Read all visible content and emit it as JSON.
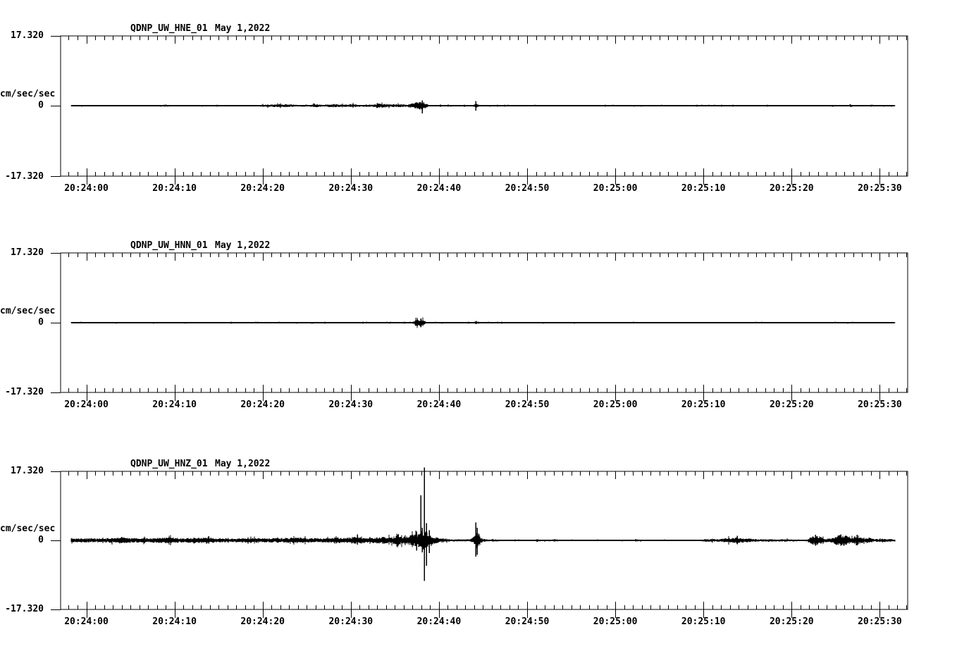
{
  "page": {
    "background": "#ffffff",
    "foreground": "#000000"
  },
  "charts": [
    {
      "station": "QDNP_UW_HNE_01",
      "date": "May 1,2022",
      "y_top": "17.320",
      "y_zero": "0",
      "y_bottom": "-17.320",
      "y_unit": "cm/sec/sec"
    },
    {
      "station": "QDNP_UW_HNN_01",
      "date": "May 1,2022",
      "y_top": "17.320",
      "y_zero": "0",
      "y_bottom": "-17.320",
      "y_unit": "cm/sec/sec"
    },
    {
      "station": "QDNP_UW_HNZ_01",
      "date": "May 1,2022",
      "y_top": "17.320",
      "y_zero": "0",
      "y_bottom": "-17.320",
      "y_unit": "cm/sec/sec"
    }
  ],
  "chart_data": [
    {
      "type": "line",
      "title": "QDNP_UW_HNE_01  May 1,2022",
      "ylabel": "cm/sec/sec",
      "ylim": [
        -17.32,
        17.32
      ],
      "y_tick_values": [
        17.32,
        0,
        -17.32
      ],
      "x_tick_labels": [
        "20:24:00",
        "20:24:10",
        "20:24:20",
        "20:24:30",
        "20:24:40",
        "20:24:50",
        "20:25:00",
        "20:25:10",
        "20:25:20",
        "20:25:30"
      ],
      "x_tick_seconds": [
        0,
        10,
        20,
        30,
        40,
        50,
        60,
        70,
        80,
        90
      ],
      "x_minor_interval_s": 1,
      "x_range_s": [
        -2.9,
        93.2
      ],
      "trace_range_s": [
        -1.7,
        91.7
      ],
      "grid": false,
      "seed": 11,
      "envelope": [
        [
          -1.7,
          0.14
        ],
        [
          8.5,
          0.14
        ],
        [
          9,
          0.3
        ],
        [
          9.5,
          0.14
        ],
        [
          16.8,
          0.14
        ],
        [
          17.2,
          0.22
        ],
        [
          17.6,
          0.14
        ],
        [
          23,
          0.35
        ],
        [
          24,
          0.18
        ],
        [
          26.3,
          0.32
        ],
        [
          27,
          0.18
        ],
        [
          28,
          0.4
        ],
        [
          29,
          0.25
        ],
        [
          30.3,
          0.35
        ],
        [
          31,
          0.18
        ],
        [
          32.5,
          0.3
        ],
        [
          33.5,
          0.45
        ],
        [
          34.5,
          0.3
        ],
        [
          35.5,
          0.35
        ],
        [
          36.5,
          0.25
        ],
        [
          37,
          0.5
        ],
        [
          37.4,
          0.8
        ],
        [
          38.1,
          1.0
        ],
        [
          38.5,
          0.6
        ],
        [
          38.8,
          0.2
        ],
        [
          43.8,
          0.15
        ],
        [
          44.2,
          0.6
        ],
        [
          44.6,
          0.15
        ],
        [
          86.3,
          0.14
        ],
        [
          86.7,
          0.35
        ],
        [
          87.1,
          0.14
        ],
        [
          91.7,
          0.14
        ]
      ],
      "spikes": [
        [
          37.75,
          0.9,
          -0.7
        ],
        [
          38.05,
          1.3,
          -1.9
        ],
        [
          44.2,
          1.15,
          -1.25
        ]
      ]
    },
    {
      "type": "line",
      "title": "QDNP_UW_HNN_01  May 1,2022",
      "ylabel": "cm/sec/sec",
      "ylim": [
        -17.32,
        17.32
      ],
      "y_tick_values": [
        17.32,
        0,
        -17.32
      ],
      "x_tick_labels": [
        "20:24:00",
        "20:24:10",
        "20:24:20",
        "20:24:30",
        "20:24:40",
        "20:24:50",
        "20:25:00",
        "20:25:10",
        "20:25:20",
        "20:25:30"
      ],
      "x_tick_seconds": [
        0,
        10,
        20,
        30,
        40,
        50,
        60,
        70,
        80,
        90
      ],
      "x_minor_interval_s": 1,
      "x_range_s": [
        -2.9,
        93.2
      ],
      "trace_range_s": [
        -1.7,
        91.7
      ],
      "grid": false,
      "seed": 22,
      "envelope": [
        [
          -1.7,
          0.13
        ],
        [
          33.8,
          0.13
        ],
        [
          34.1,
          0.25
        ],
        [
          34.4,
          0.13
        ],
        [
          36.9,
          0.13
        ],
        [
          37.2,
          0.5
        ],
        [
          37.6,
          0.8
        ],
        [
          38.0,
          0.9
        ],
        [
          38.4,
          0.4
        ],
        [
          38.7,
          0.13
        ],
        [
          43.9,
          0.13
        ],
        [
          44.25,
          0.45
        ],
        [
          44.6,
          0.13
        ],
        [
          86.5,
          0.13
        ],
        [
          86.8,
          0.28
        ],
        [
          87.1,
          0.13
        ],
        [
          91.7,
          0.13
        ]
      ],
      "spikes": [
        [
          37.55,
          0.85,
          -0.9
        ],
        [
          37.95,
          1.05,
          -1.15
        ],
        [
          38.2,
          0.55,
          -0.5
        ]
      ]
    },
    {
      "type": "line",
      "title": "QDNP_UW_HNZ_01  May 1,2022",
      "ylabel": "cm/sec/sec",
      "ylim": [
        -17.32,
        17.32
      ],
      "y_tick_values": [
        17.32,
        0,
        -17.32
      ],
      "x_tick_labels": [
        "20:24:00",
        "20:24:10",
        "20:24:20",
        "20:24:30",
        "20:24:40",
        "20:24:50",
        "20:25:00",
        "20:25:10",
        "20:25:20",
        "20:25:30"
      ],
      "x_tick_seconds": [
        0,
        10,
        20,
        30,
        40,
        50,
        60,
        70,
        80,
        90
      ],
      "x_minor_interval_s": 1,
      "x_range_s": [
        -2.9,
        93.2
      ],
      "trace_range_s": [
        -1.7,
        91.7
      ],
      "grid": false,
      "seed": 33,
      "envelope": [
        [
          -1.7,
          0.45
        ],
        [
          1,
          0.5
        ],
        [
          3.3,
          0.55
        ],
        [
          4,
          0.85
        ],
        [
          4.8,
          0.55
        ],
        [
          7,
          0.5
        ],
        [
          9.7,
          0.7
        ],
        [
          10.5,
          0.5
        ],
        [
          12,
          0.5
        ],
        [
          13.8,
          0.8
        ],
        [
          14.5,
          0.55
        ],
        [
          16,
          0.45
        ],
        [
          18,
          0.5
        ],
        [
          20,
          0.5
        ],
        [
          22,
          0.55
        ],
        [
          24.3,
          0.7
        ],
        [
          25,
          0.5
        ],
        [
          27,
          0.5
        ],
        [
          28.6,
          0.65
        ],
        [
          29.5,
          0.55
        ],
        [
          30.6,
          0.95
        ],
        [
          31.3,
          0.65
        ],
        [
          32,
          0.6
        ],
        [
          33.8,
          0.9
        ],
        [
          34.5,
          0.7
        ],
        [
          35.3,
          1.05
        ],
        [
          36,
          0.9
        ],
        [
          36.7,
          1.1
        ],
        [
          37.2,
          1.4
        ],
        [
          37.6,
          1.8
        ],
        [
          38.0,
          2.2
        ],
        [
          38.3,
          2.4
        ],
        [
          38.7,
          1.8
        ],
        [
          39.1,
          1.4
        ],
        [
          39.5,
          0.9
        ],
        [
          40,
          0.55
        ],
        [
          40.8,
          0.4
        ],
        [
          41.5,
          0.28
        ],
        [
          43.5,
          0.25
        ],
        [
          43.9,
          0.8
        ],
        [
          44.2,
          2.2
        ],
        [
          44.5,
          1.6
        ],
        [
          44.9,
          0.5
        ],
        [
          45.3,
          0.3
        ],
        [
          45.8,
          0.22
        ],
        [
          46.5,
          0.3
        ],
        [
          47,
          0.18
        ],
        [
          50.8,
          0.15
        ],
        [
          51.2,
          0.4
        ],
        [
          51.6,
          0.15
        ],
        [
          53.2,
          0.3
        ],
        [
          53.6,
          0.15
        ],
        [
          59,
          0.12
        ],
        [
          63,
          0.18
        ],
        [
          64,
          0.12
        ],
        [
          69.5,
          0.15
        ],
        [
          70,
          0.3
        ],
        [
          70.8,
          0.35
        ],
        [
          71.5,
          0.3
        ],
        [
          72.3,
          0.45
        ],
        [
          73,
          0.55
        ],
        [
          73.7,
          0.7
        ],
        [
          74.3,
          0.5
        ],
        [
          75,
          0.45
        ],
        [
          75.7,
          0.35
        ],
        [
          76.5,
          0.25
        ],
        [
          77.5,
          0.3
        ],
        [
          78.3,
          0.25
        ],
        [
          79.5,
          0.3
        ],
        [
          80.3,
          0.25
        ],
        [
          81,
          0.2
        ],
        [
          81.8,
          0.25
        ],
        [
          82.3,
          0.9
        ],
        [
          82.8,
          1.3
        ],
        [
          83.3,
          0.9
        ],
        [
          83.8,
          0.45
        ],
        [
          84.5,
          0.5
        ],
        [
          85.2,
          1.2
        ],
        [
          85.8,
          1.35
        ],
        [
          86.4,
          1.0
        ],
        [
          86.9,
          0.6
        ],
        [
          87.3,
          1.2
        ],
        [
          87.7,
          0.8
        ],
        [
          88.3,
          0.5
        ],
        [
          88.8,
          0.65
        ],
        [
          89.3,
          0.4
        ],
        [
          90,
          0.35
        ],
        [
          90.7,
          0.3
        ],
        [
          91.3,
          0.35
        ],
        [
          91.7,
          0.25
        ]
      ],
      "spikes": [
        [
          13.9,
          1.05,
          -0.8
        ],
        [
          30.7,
          1.5,
          -1.1
        ],
        [
          35.4,
          1.6,
          -1.3
        ],
        [
          37.45,
          2.2,
          -2.6
        ],
        [
          37.9,
          11.3,
          -1.5
        ],
        [
          38.1,
          3.2,
          -3.0
        ],
        [
          38.35,
          18.3,
          -10.2
        ],
        [
          38.6,
          4.3,
          -6.4
        ],
        [
          38.85,
          2.6,
          -3.2
        ],
        [
          44.2,
          4.5,
          -4.1
        ],
        [
          44.35,
          3.2,
          -3.6
        ],
        [
          73.8,
          1.15,
          -1.0
        ],
        [
          82.7,
          1.45,
          -1.3
        ],
        [
          85.6,
          1.5,
          -1.35
        ],
        [
          87.4,
          1.45,
          -1.2
        ]
      ]
    }
  ]
}
